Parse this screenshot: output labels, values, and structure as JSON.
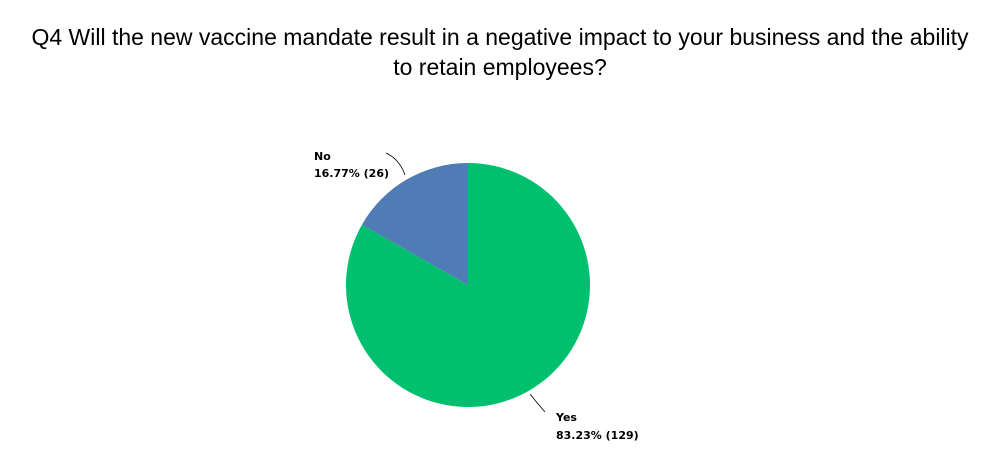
{
  "chart_data": {
    "type": "pie",
    "title_lines": [
      "Q4 Will the new vaccine mandate result in a negative impact to your business and the ability",
      "to retain employees?"
    ],
    "slices": [
      {
        "name": "Yes",
        "value": 129,
        "percent_label": "83.23% (129)",
        "color": "#00bf6f"
      },
      {
        "name": "No",
        "value": 26,
        "percent_label": "16.77% (26)",
        "color": "#507cb6"
      }
    ]
  }
}
